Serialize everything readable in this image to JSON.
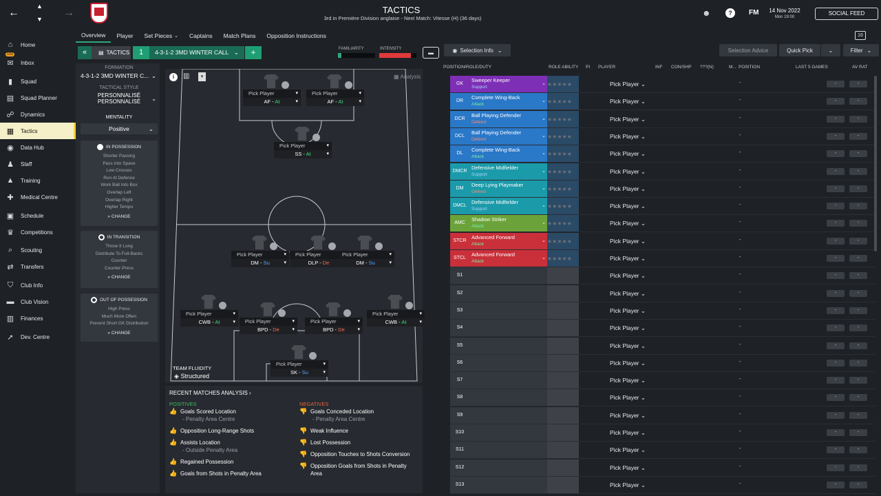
{
  "topbar": {
    "title": "TACTICS",
    "subtitle": "3rd in Première Division anglaise - Next Match: Vitesse (H) (36 days)",
    "date": "14 Nov 2022",
    "time": "Mon 19:00",
    "social_feed": "SOCIAL FEED",
    "fm": "FM"
  },
  "nav": [
    {
      "label": "Home",
      "icon": "home-icon",
      "glyph": "⌂"
    },
    {
      "label": "Inbox",
      "icon": "inbox-icon",
      "glyph": "✉",
      "badge": "150"
    },
    {
      "label": "Squad",
      "icon": "shirt-icon",
      "glyph": "▮"
    },
    {
      "label": "Squad Planner",
      "icon": "planner-icon",
      "glyph": "▤"
    },
    {
      "label": "Dynamics",
      "icon": "dynamics-icon",
      "glyph": "☍"
    },
    {
      "label": "Tactics",
      "icon": "tactics-icon",
      "glyph": "▦"
    },
    {
      "label": "Data Hub",
      "icon": "data-hub-icon",
      "glyph": "◉"
    },
    {
      "label": "Staff",
      "icon": "staff-icon",
      "glyph": "♟"
    },
    {
      "label": "Training",
      "icon": "training-icon",
      "glyph": "▲"
    },
    {
      "label": "Medical Centre",
      "icon": "medical-icon",
      "glyph": "✚"
    },
    {
      "label": "Schedule",
      "icon": "schedule-icon",
      "glyph": "▣"
    },
    {
      "label": "Competitions",
      "icon": "trophy-icon",
      "glyph": "♛"
    },
    {
      "label": "Scouting",
      "icon": "scouting-icon",
      "glyph": "⌕"
    },
    {
      "label": "Transfers",
      "icon": "transfers-icon",
      "glyph": "⇄"
    },
    {
      "label": "Club Info",
      "icon": "shield-icon",
      "glyph": "⛉"
    },
    {
      "label": "Club Vision",
      "icon": "vision-icon",
      "glyph": "▬"
    },
    {
      "label": "Finances",
      "icon": "finances-icon",
      "glyph": "▥"
    },
    {
      "label": "Dev. Centre",
      "icon": "dev-centre-icon",
      "glyph": "➚"
    }
  ],
  "tabs": [
    "Overview",
    "Player",
    "Set Pieces",
    "Captains",
    "Match Plans",
    "Opposition Instructions"
  ],
  "tactic_bar": {
    "tactics_label": "TACTICS",
    "slot": "1",
    "tactic_name": "4-3-1-2 3MD WINTER CALL",
    "familiarity": "FAMILIARITY",
    "intensity": "INTENSITY",
    "selection_info": "Selection Info",
    "selection_advice": "Selection Advice",
    "quick_pick": "Quick Pick",
    "filter": "Filter",
    "familiarity_level": 0.1,
    "intensity_level": 0.85
  },
  "left": {
    "formation_label": "FORMATION",
    "formation": "4-3-1-2 3MD WINTER C...",
    "style_label": "TACTICAL STYLE",
    "style1": "PERSONNALISÉ",
    "style2": "PERSONNALISÉ",
    "mentality_label": "MENTALITY",
    "mentality": "Positive",
    "in_possession": {
      "title": "IN POSSESSION",
      "items": [
        "Shorter Passing",
        "Pass Into Space",
        "Low Crosses",
        "Run At Defence",
        "Work Ball Into Box",
        "Overlap Left",
        "Overlap Right",
        "Higher Tempo"
      ]
    },
    "in_transition": {
      "title": "IN TRANSITION",
      "items": [
        "Throw It Long",
        "Distribute To Full-Backs",
        "Counter",
        "Counter-Press"
      ]
    },
    "out_possession": {
      "title": "OUT OF POSSESSION",
      "items": [
        "High Press",
        "Much More Often",
        "Prevent Short GK Distribution"
      ]
    },
    "change": "CHANGE"
  },
  "pitch": {
    "analysis": "Analysis",
    "fluidity_label": "TEAM FLUIDITY",
    "fluidity": "Structured",
    "pick": "Pick Player",
    "slots": [
      {
        "role": "AF",
        "duty": "At"
      },
      {
        "role": "AF",
        "duty": "At"
      },
      {
        "role": "SS",
        "duty": "At"
      },
      {
        "role": "DM",
        "duty": "Su"
      },
      {
        "role": "DLP",
        "duty": "De"
      },
      {
        "role": "DM",
        "duty": "Su"
      },
      {
        "role": "CWB",
        "duty": "At"
      },
      {
        "role": "BPD",
        "duty": "De"
      },
      {
        "role": "BPD",
        "duty": "De"
      },
      {
        "role": "CWB",
        "duty": "At"
      },
      {
        "role": "SK",
        "duty": "Su"
      }
    ]
  },
  "analysis": {
    "title": "RECENT MATCHES ANALYSIS",
    "positives_label": "POSITIVES",
    "negatives_label": "NEGATIVES",
    "positives": [
      [
        "Goals Scored Location",
        "- Penalty Area Centre"
      ],
      [
        "Opposition Long-Range Shots",
        ""
      ],
      [
        "Assists Location",
        "- Outside Penalty Area"
      ],
      [
        "Regained Possession",
        ""
      ],
      [
        "Goals from Shots in Penalty Area",
        ""
      ]
    ],
    "negatives": [
      [
        "Goals Conceded Location",
        "- Penalty Area Centre"
      ],
      [
        "Weak Influence",
        ""
      ],
      [
        "Lost Possession",
        ""
      ],
      [
        "Opposition Touches to Shots Conversion",
        ""
      ],
      [
        "Opposition Goals from Shots in Penalty",
        "Area"
      ]
    ]
  },
  "table": {
    "headers": [
      "POSITION/ROLE/DUTY",
      "ROLE ABILITY",
      "PI",
      "PLAYER",
      "INF",
      "CON/SHP",
      "???(N)",
      "M...",
      "POSITION",
      "LAST 5 GAMES",
      "AV RAT"
    ],
    "rows": [
      {
        "pos": "GK",
        "role": "Sweeper Keeper",
        "duty": "Support",
        "color": "#7d2fb5"
      },
      {
        "pos": "DR",
        "role": "Complete Wing-Back",
        "duty": "Attack",
        "color": "#2a78c8"
      },
      {
        "pos": "DCR",
        "role": "Ball Playing Defender",
        "duty": "Defend",
        "color": "#2a78c8"
      },
      {
        "pos": "DCL",
        "role": "Ball Playing Defender",
        "duty": "Defend",
        "color": "#2a78c8"
      },
      {
        "pos": "DL",
        "role": "Complete Wing-Back",
        "duty": "Attack",
        "color": "#2a78c8"
      },
      {
        "pos": "DMCR",
        "role": "Defensive Midfielder",
        "duty": "Support",
        "color": "#1b9aaa"
      },
      {
        "pos": "DM",
        "role": "Deep Lying Playmaker",
        "duty": "Defend",
        "color": "#1b9aaa"
      },
      {
        "pos": "DMCL",
        "role": "Defensive Midfielder",
        "duty": "Support",
        "color": "#1b9aaa"
      },
      {
        "pos": "AMC",
        "role": "Shadow Striker",
        "duty": "Attack",
        "color": "#6ba33a"
      },
      {
        "pos": "STCR",
        "role": "Advanced Forward",
        "duty": "Attack",
        "color": "#c9303a"
      },
      {
        "pos": "STCL",
        "role": "Advanced Forward",
        "duty": "Attack",
        "color": "#c9303a"
      },
      {
        "pos": "S1"
      },
      {
        "pos": "S2"
      },
      {
        "pos": "S3"
      },
      {
        "pos": "S4"
      },
      {
        "pos": "S5"
      },
      {
        "pos": "S6"
      },
      {
        "pos": "S7"
      },
      {
        "pos": "S8"
      },
      {
        "pos": "S9"
      },
      {
        "pos": "S10"
      },
      {
        "pos": "S11"
      },
      {
        "pos": "S12"
      },
      {
        "pos": "S13"
      }
    ],
    "pick": "Pick Player",
    "dash": "-"
  }
}
